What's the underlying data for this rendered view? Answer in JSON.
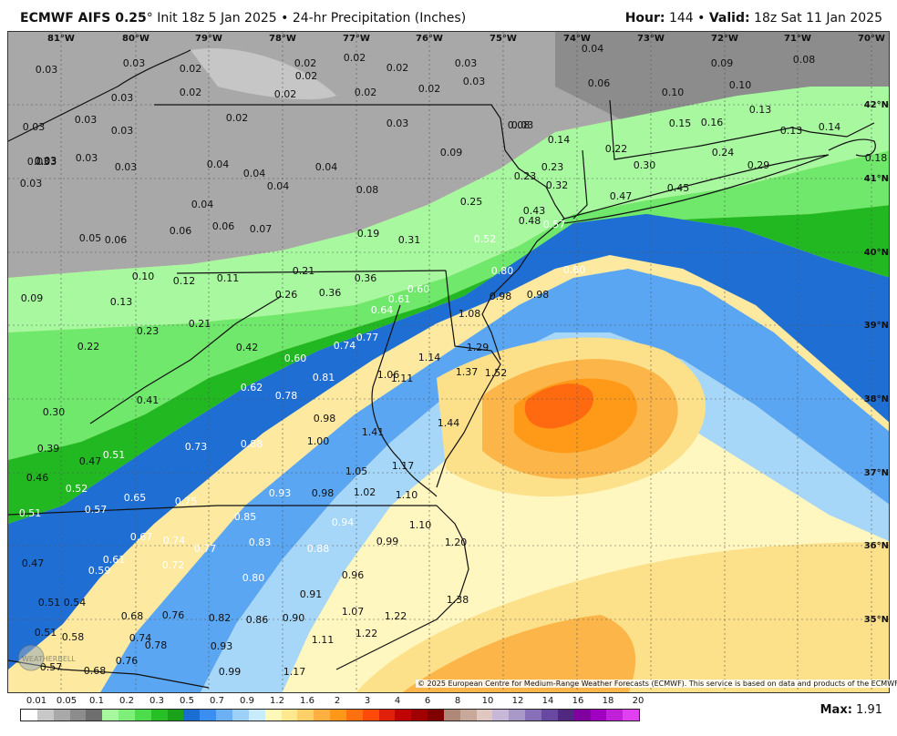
{
  "header": {
    "model": "ECMWF AIFS 0.25",
    "degree": "°",
    "init": "Init 18z 5 Jan 2025",
    "sep": "•",
    "product": "24-hr Precipitation (Inches)",
    "hour_label": "Hour:",
    "hour_value": "144",
    "valid_label": "Valid:",
    "valid_value": "18z Sat 11 Jan 2025"
  },
  "lon_labels": [
    "81°W",
    "80°W",
    "79°W",
    "78°W",
    "77°W",
    "76°W",
    "75°W",
    "74°W",
    "73°W",
    "72°W",
    "71°W",
    "70°W"
  ],
  "lat_labels": [
    "42°N",
    "41°N",
    "40°N",
    "39°N",
    "38°N",
    "37°N",
    "36°N",
    "35°N"
  ],
  "values": [
    "0.03",
    "0.03",
    "0.02",
    "0.02",
    "0.02",
    "0.02",
    "0.03",
    "0.04",
    "0.03",
    "0.02",
    "0.02",
    "0.02",
    "0.02",
    "0.03",
    "0.06",
    "0.03",
    "0.03",
    "0.02",
    "0.03",
    "0.08",
    "0.10",
    "0.09",
    "0.08",
    "0.03",
    "0.03",
    "0.02",
    "0.03",
    "0.14",
    "0.13",
    "0.10",
    "0.16",
    "0.15",
    "0.03",
    "0.03",
    "0.03",
    "0.04",
    "0.04",
    "0.04",
    "0.09",
    "0.22",
    "0.24",
    "0.29",
    "0.14",
    "0.13",
    "0.03",
    "0.03",
    "0.04",
    "0.04",
    "0.08",
    "0.23",
    "0.23",
    "0.30",
    "0.18",
    "0.06",
    "0.06",
    "0.07",
    "0.25",
    "0.32",
    "0.47",
    "0.45",
    "0.43",
    "0.05",
    "0.06",
    "0.19",
    "0.31",
    "0.52",
    "0.48",
    "0.57",
    "0.10",
    "0.12",
    "0.11",
    "0.21",
    "0.60",
    "0.80",
    "0.98",
    "0.09",
    "0.13",
    "0.26",
    "0.36",
    "0.36",
    "0.61",
    "0.60",
    "0.98",
    "0.21",
    "0.64",
    "1.08",
    "0.77",
    "0.74",
    "0.22",
    "0.23",
    "0.42",
    "0.60",
    "1.29",
    "1.14",
    "1.37",
    "1.52",
    "0.81",
    "1.06",
    "1.11",
    "0.41",
    "0.62",
    "0.78",
    "0.30",
    "0.98",
    "1.44",
    "1.41",
    "0.39",
    "0.47",
    "0.51",
    "0.73",
    "0.88",
    "1.00",
    "1.17",
    "0.46",
    "1.05",
    "0.52",
    "0.65",
    "0.75",
    "0.93",
    "0.98",
    "1.02",
    "1.10",
    "0.51",
    "0.57",
    "0.85",
    "0.94",
    "1.10",
    "0.67",
    "0.74",
    "0.77",
    "0.83",
    "0.88",
    "0.99",
    "1.20",
    "0.47",
    "0.61",
    "0.59",
    "0.72",
    "0.80",
    "0.96",
    "0.51",
    "0.54",
    "0.91",
    "1.38",
    "0.68",
    "0.76",
    "0.82",
    "0.86",
    "0.90",
    "1.07",
    "1.22",
    "0.51",
    "0.58",
    "0.74",
    "0.78",
    "1.22",
    "0.93",
    "1.11",
    "0.57",
    "0.68",
    "0.76",
    "0.99",
    "1.17"
  ],
  "copyright": "© 2025 European Centre for Medium-Range Weather Forecasts (ECMWF). This service is based on data and products of the ECMWF.",
  "legend": {
    "labels": [
      "0.01",
      "0.05",
      "0.1",
      "0.2",
      "0.3",
      "0.5",
      "0.7",
      "0.9",
      "1.2",
      "1.6",
      "2",
      "3",
      "4",
      "6",
      "8",
      "10",
      "12",
      "14",
      "16",
      "18",
      "20"
    ],
    "colors": [
      "#ffffff",
      "#c8c8c8",
      "#a9a9a9",
      "#8c8c8c",
      "#6e6e6e",
      "#a8f8a0",
      "#7ef07a",
      "#4cdc4c",
      "#26c026",
      "#1aa21a",
      "#1a6ed2",
      "#3a8ef0",
      "#6cb0f4",
      "#9cd0f8",
      "#c8ecfc",
      "#fff8b8",
      "#ffe890",
      "#ffd068",
      "#ffb040",
      "#ff9818",
      "#ff7010",
      "#ff4a0a",
      "#e02008",
      "#c00404",
      "#a00000",
      "#800000",
      "#b08878",
      "#c8a898",
      "#e0c8c0",
      "#c8b8d8",
      "#a898c8",
      "#8870b8",
      "#6848a0",
      "#502880",
      "#8000a0",
      "#a000c0",
      "#c020d8",
      "#e040f0"
    ]
  },
  "max_label": "Max:",
  "max_value": "1.91",
  "logo_text": "WEATHERBELL"
}
